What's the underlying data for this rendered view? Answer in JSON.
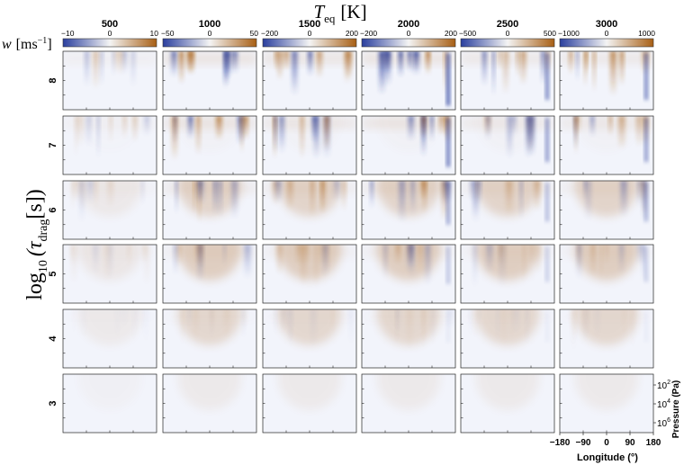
{
  "chart_data": {
    "type": "heatmap",
    "title": {
      "var": "T",
      "sub": "eq",
      "unit": "[K]"
    },
    "colorbar_label": {
      "var": "w",
      "unit": "[ms",
      "exp": "−1",
      "close": "]"
    },
    "row_axis_label": {
      "func": "log",
      "func_sub": "10",
      "arg": "(τ",
      "arg_sub": "drag",
      "close": "[s])"
    },
    "columns": [
      {
        "teq": "500",
        "ticks": [
          "−10",
          "0",
          "10"
        ]
      },
      {
        "teq": "1000",
        "ticks": [
          "−50",
          "0",
          "50"
        ]
      },
      {
        "teq": "1500",
        "ticks": [
          "−200",
          "0",
          "200"
        ]
      },
      {
        "teq": "2000",
        "ticks": [
          "−200",
          "0",
          "200"
        ]
      },
      {
        "teq": "2500",
        "ticks": [
          "−500",
          "0",
          "500"
        ]
      },
      {
        "teq": "3000",
        "ticks": [
          "−1000",
          "0",
          "1000"
        ]
      }
    ],
    "rows": [
      "8",
      "7",
      "6",
      "5",
      "4",
      "3"
    ],
    "xlabel": "Longitude (°)",
    "xticks": [
      "−180",
      "−90",
      "0",
      "90",
      "180"
    ],
    "ylabel": "Pressure (Pa)",
    "yticks": [
      {
        "base": "10",
        "exp": "2"
      },
      {
        "base": "10",
        "exp": "4"
      },
      {
        "base": "10",
        "exp": "6"
      }
    ],
    "colors": {
      "negative": "#2a3f9e",
      "zero": "#f7f7f7",
      "positive": "#a85f14"
    }
  }
}
